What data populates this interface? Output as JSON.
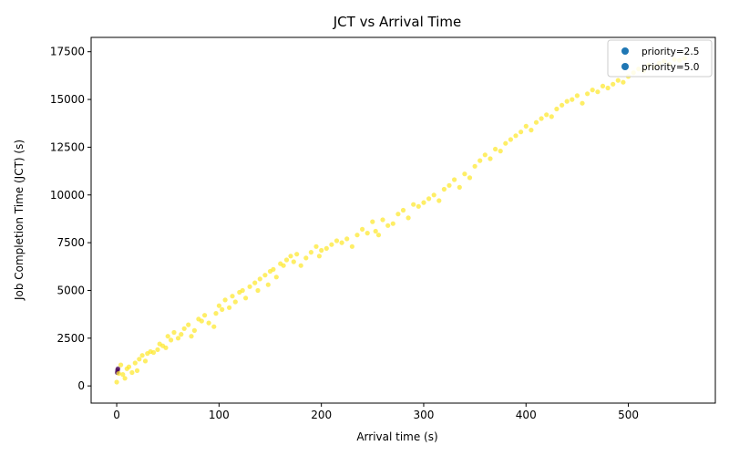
{
  "chart_data": {
    "type": "scatter",
    "title": "JCT vs Arrival Time",
    "xlabel": "Arrival time (s)",
    "ylabel": "Job Completion Time (JCT) (s)",
    "xlim": [
      -25,
      585
    ],
    "ylim": [
      -900,
      18250
    ],
    "x_ticks": [
      0,
      100,
      200,
      300,
      400,
      500
    ],
    "y_ticks": [
      0,
      2500,
      5000,
      7500,
      10000,
      12500,
      15000,
      17500
    ],
    "grid": false,
    "legend_position": "top-right",
    "colors": {
      "low_priority": "#440154",
      "high_priority": "#fde725",
      "legend_marker": "#1f77b4"
    },
    "series": [
      {
        "name": "priority=2.5",
        "color": "#440154",
        "x": [
          0.5,
          0.8,
          1.2
        ],
        "y": [
          700,
          820,
          900
        ]
      },
      {
        "name": "priority=5.0",
        "color": "#fde725",
        "x": [
          0,
          2,
          4,
          6,
          8,
          10,
          12,
          15,
          18,
          20,
          22,
          25,
          28,
          30,
          33,
          36,
          40,
          42,
          45,
          48,
          50,
          53,
          56,
          60,
          63,
          66,
          70,
          73,
          76,
          80,
          83,
          86,
          90,
          95,
          97,
          100,
          103,
          106,
          110,
          113,
          116,
          120,
          123,
          126,
          130,
          135,
          138,
          140,
          145,
          148,
          150,
          153,
          156,
          160,
          163,
          166,
          170,
          173,
          176,
          180,
          185,
          190,
          195,
          198,
          200,
          205,
          210,
          215,
          220,
          225,
          230,
          235,
          240,
          245,
          250,
          253,
          256,
          260,
          265,
          270,
          275,
          280,
          285,
          290,
          295,
          300,
          305,
          310,
          315,
          320,
          325,
          330,
          335,
          340,
          345,
          350,
          355,
          360,
          365,
          370,
          375,
          380,
          385,
          390,
          395,
          400,
          405,
          410,
          415,
          420,
          425,
          430,
          435,
          440,
          445,
          450,
          455,
          460,
          465,
          470,
          475,
          480,
          485,
          490,
          495,
          500,
          505,
          510,
          515,
          520,
          525,
          530,
          535,
          540,
          545,
          550,
          555
        ],
        "y": [
          200,
          650,
          1100,
          600,
          400,
          900,
          1000,
          700,
          1200,
          800,
          1400,
          1600,
          1300,
          1700,
          1800,
          1750,
          1900,
          2200,
          2100,
          2000,
          2600,
          2400,
          2800,
          2500,
          2700,
          3000,
          3200,
          2600,
          2900,
          3500,
          3400,
          3700,
          3300,
          3100,
          3800,
          4200,
          4000,
          4500,
          4100,
          4700,
          4400,
          4900,
          5000,
          4600,
          5200,
          5400,
          5000,
          5600,
          5800,
          5300,
          6000,
          6100,
          5700,
          6400,
          6300,
          6600,
          6800,
          6500,
          6900,
          6300,
          6700,
          7000,
          7300,
          6800,
          7100,
          7200,
          7400,
          7600,
          7500,
          7700,
          7300,
          7900,
          8200,
          8000,
          8600,
          8100,
          7900,
          8700,
          8400,
          8500,
          9000,
          9200,
          8800,
          9500,
          9400,
          9600,
          9800,
          10000,
          9700,
          10300,
          10500,
          10800,
          10400,
          11100,
          10900,
          11500,
          11800,
          12100,
          11900,
          12400,
          12300,
          12700,
          12900,
          13100,
          13300,
          13600,
          13400,
          13800,
          14000,
          14200,
          14100,
          14500,
          14700,
          14900,
          15000,
          15200,
          14800,
          15300,
          15500,
          15400,
          15700,
          15600,
          15800,
          16000,
          15900,
          16200,
          16400,
          16600,
          16500,
          16800,
          16700,
          16900,
          17000,
          16850,
          17100,
          17050,
          17150
        ]
      }
    ]
  }
}
